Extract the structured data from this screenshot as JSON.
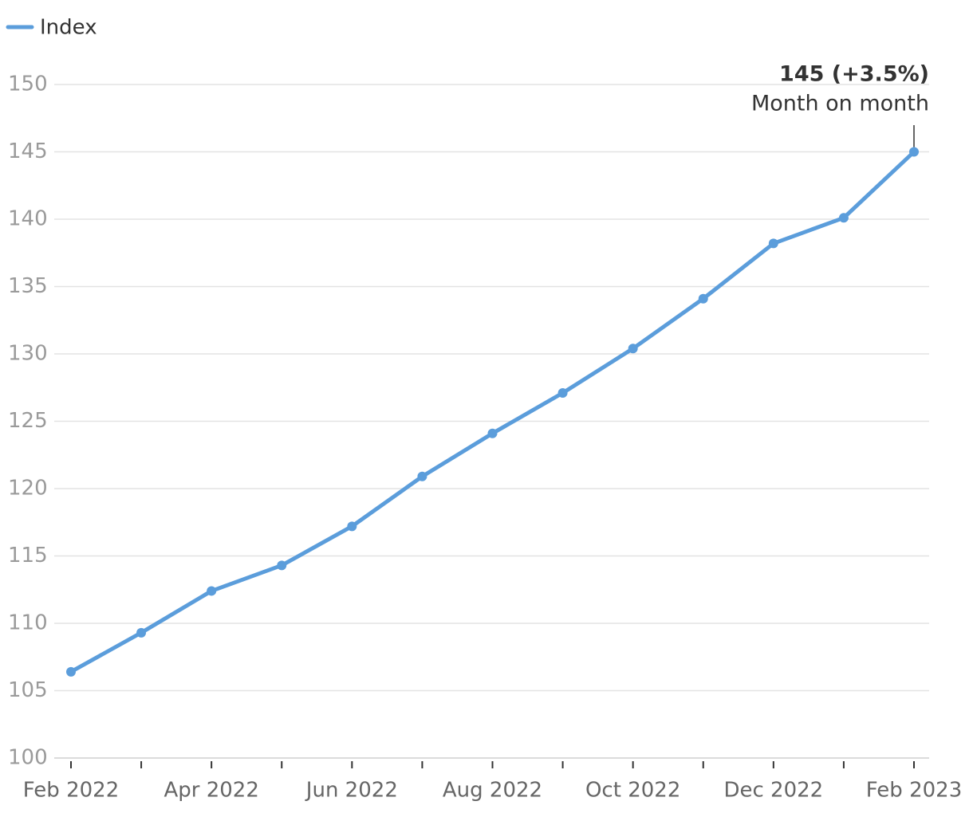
{
  "chart_data": {
    "type": "line",
    "categories": [
      "Feb 2022",
      null,
      "Apr 2022",
      null,
      "Jun 2022",
      null,
      "Aug 2022",
      null,
      "Oct 2022",
      null,
      "Dec 2022",
      null,
      "Feb 2023"
    ],
    "series": [
      {
        "name": "Index",
        "color": "#5b9ddb",
        "values": [
          106.4,
          109.3,
          112.4,
          114.3,
          117.2,
          120.9,
          124.1,
          127.1,
          130.4,
          134.1,
          138.2,
          140.1,
          145.0
        ]
      }
    ],
    "ylim": [
      100,
      150
    ],
    "yticks": [
      100,
      105,
      110,
      115,
      120,
      125,
      130,
      135,
      140,
      145,
      150
    ],
    "grid": true,
    "annotation": {
      "title": "145 (+3.5%)",
      "text": "Month on month"
    }
  }
}
